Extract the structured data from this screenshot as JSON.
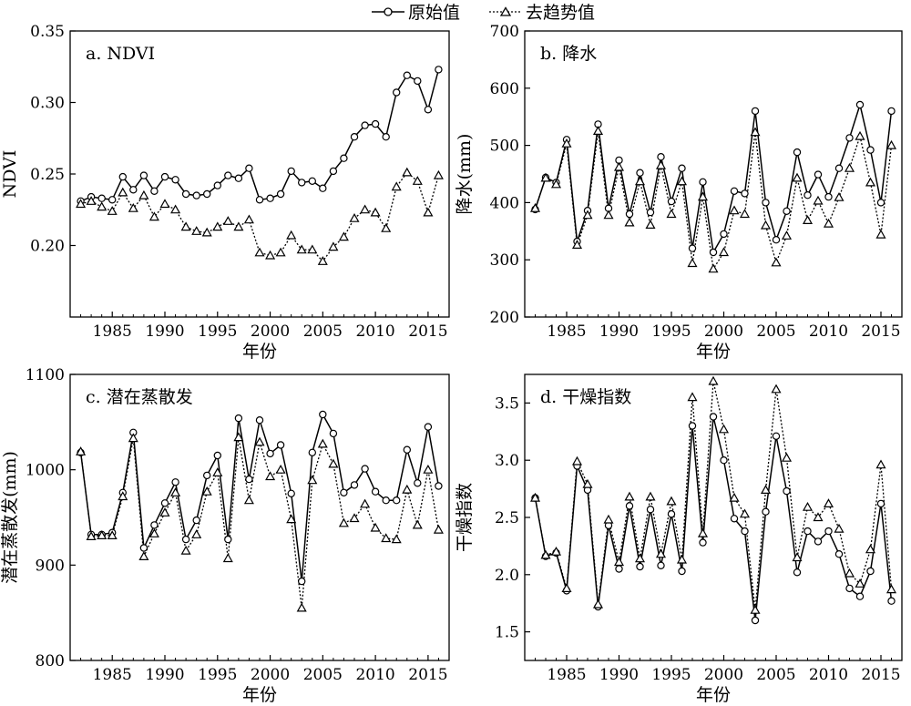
{
  "legend": {
    "items": [
      {
        "label": "原始值",
        "marker": "circle",
        "dash": "solid"
      },
      {
        "label": "去趋势值",
        "marker": "triangle",
        "dash": "dotted"
      }
    ]
  },
  "chart_data": [
    {
      "type": "line",
      "title": "a. NDVI",
      "xlabel": "年份",
      "ylabel": "NDVI",
      "xlim": [
        1981,
        2017
      ],
      "ylim": [
        0.15,
        0.35
      ],
      "xticks": [
        1985,
        1990,
        1995,
        2000,
        2005,
        2010,
        2015
      ],
      "yticks": [
        "0.20",
        "0.25",
        "0.30",
        "0.35"
      ],
      "x": [
        1982,
        1983,
        1984,
        1985,
        1986,
        1987,
        1988,
        1989,
        1990,
        1991,
        1992,
        1993,
        1994,
        1995,
        1996,
        1997,
        1998,
        1999,
        2000,
        2001,
        2002,
        2003,
        2004,
        2005,
        2006,
        2007,
        2008,
        2009,
        2010,
        2011,
        2012,
        2013,
        2014,
        2015,
        2016
      ],
      "series": [
        {
          "name": "原始值",
          "values": [
            0.231,
            0.234,
            0.233,
            0.232,
            0.248,
            0.239,
            0.249,
            0.238,
            0.248,
            0.246,
            0.236,
            0.235,
            0.236,
            0.242,
            0.249,
            0.247,
            0.254,
            0.232,
            0.233,
            0.236,
            0.252,
            0.244,
            0.245,
            0.24,
            0.252,
            0.261,
            0.276,
            0.284,
            0.285,
            0.276,
            0.307,
            0.319,
            0.315,
            0.295,
            0.323
          ]
        },
        {
          "name": "去趋势值",
          "values": [
            0.229,
            0.231,
            0.227,
            0.224,
            0.237,
            0.226,
            0.235,
            0.22,
            0.229,
            0.225,
            0.213,
            0.21,
            0.209,
            0.213,
            0.217,
            0.213,
            0.218,
            0.195,
            0.193,
            0.195,
            0.207,
            0.197,
            0.197,
            0.189,
            0.199,
            0.206,
            0.219,
            0.225,
            0.223,
            0.212,
            0.241,
            0.251,
            0.245,
            0.223,
            0.249
          ]
        }
      ]
    },
    {
      "type": "line",
      "title": "b. 降水",
      "xlabel": "年份",
      "ylabel": "降水(mm)",
      "xlim": [
        1981,
        2017
      ],
      "ylim": [
        200,
        700
      ],
      "xticks": [
        1985,
        1990,
        1995,
        2000,
        2005,
        2010,
        2015
      ],
      "yticks": [
        "200",
        "300",
        "400",
        "500",
        "600",
        "700"
      ],
      "x": [
        1982,
        1983,
        1984,
        1985,
        1986,
        1987,
        1988,
        1989,
        1990,
        1991,
        1992,
        1993,
        1994,
        1995,
        1996,
        1997,
        1998,
        1999,
        2000,
        2001,
        2002,
        2003,
        2004,
        2005,
        2006,
        2007,
        2008,
        2009,
        2010,
        2011,
        2012,
        2013,
        2014,
        2015,
        2016
      ],
      "series": [
        {
          "name": "原始值",
          "values": [
            388,
            444,
            435,
            510,
            332,
            386,
            537,
            390,
            474,
            380,
            452,
            383,
            480,
            402,
            460,
            320,
            436,
            313,
            345,
            420,
            416,
            560,
            400,
            335,
            385,
            488,
            413,
            449,
            410,
            460,
            513,
            571,
            492,
            400,
            560
          ]
        },
        {
          "name": "去趋势值",
          "values": [
            390,
            443,
            432,
            503,
            326,
            378,
            525,
            378,
            462,
            365,
            437,
            361,
            465,
            380,
            437,
            294,
            410,
            284,
            313,
            386,
            380,
            523,
            360,
            295,
            342,
            443,
            369,
            403,
            363,
            409,
            460,
            516,
            435,
            344,
            500
          ]
        }
      ]
    },
    {
      "type": "line",
      "title": "c. 潜在蒸散发",
      "xlabel": "年份",
      "ylabel": "潜在蒸散发(mm)",
      "xlim": [
        1981,
        2017
      ],
      "ylim": [
        800,
        1100
      ],
      "xticks": [
        1985,
        1990,
        1995,
        2000,
        2005,
        2010,
        2015
      ],
      "yticks": [
        "800",
        "900",
        "1000",
        "1100"
      ],
      "x": [
        1982,
        1983,
        1984,
        1985,
        1986,
        1987,
        1988,
        1989,
        1990,
        1991,
        1992,
        1993,
        1994,
        1995,
        1996,
        1997,
        1998,
        1999,
        2000,
        2001,
        2002,
        2003,
        2004,
        2005,
        2006,
        2007,
        2008,
        2009,
        2010,
        2011,
        2012,
        2013,
        2014,
        2015,
        2016
      ],
      "series": [
        {
          "name": "原始值",
          "values": [
            1018,
            932,
            932,
            934,
            976,
            1039,
            918,
            942,
            965,
            987,
            927,
            947,
            994,
            1015,
            927,
            1054,
            990,
            1052,
            1017,
            1026,
            975,
            883,
            1018,
            1058,
            1038,
            976,
            984,
            1001,
            977,
            968,
            968,
            1021,
            986,
            1045,
            983
          ]
        },
        {
          "name": "去趋势值",
          "values": [
            1019,
            930,
            931,
            931,
            972,
            1033,
            909,
            933,
            955,
            976,
            915,
            932,
            977,
            997,
            907,
            1034,
            968,
            1029,
            993,
            1000,
            948,
            855,
            989,
            1027,
            1006,
            944,
            949,
            964,
            939,
            928,
            927,
            979,
            942,
            1000,
            937
          ]
        }
      ]
    },
    {
      "type": "line",
      "title": "d. 干燥指数",
      "xlabel": "年份",
      "ylabel": "干燥指数",
      "xlim": [
        1981,
        2017
      ],
      "ylim": [
        1.25,
        3.75
      ],
      "xticks": [
        1985,
        1990,
        1995,
        2000,
        2005,
        2010,
        2015
      ],
      "yticks": [
        "1.5",
        "2.0",
        "2.5",
        "3.0",
        "3.5"
      ],
      "x": [
        1982,
        1983,
        1984,
        1985,
        1986,
        1987,
        1988,
        1989,
        1990,
        1991,
        1992,
        1993,
        1994,
        1995,
        1996,
        1997,
        1998,
        1999,
        2000,
        2001,
        2002,
        2003,
        2004,
        2005,
        2006,
        2007,
        2008,
        2009,
        2010,
        2011,
        2012,
        2013,
        2014,
        2015,
        2016
      ],
      "series": [
        {
          "name": "原始值",
          "values": [
            2.67,
            2.16,
            2.19,
            1.86,
            2.95,
            2.74,
            1.72,
            2.43,
            2.05,
            2.6,
            2.07,
            2.57,
            2.08,
            2.53,
            2.03,
            3.3,
            2.28,
            3.38,
            3.0,
            2.49,
            2.38,
            1.6,
            2.55,
            3.21,
            2.73,
            2.02,
            2.38,
            2.29,
            2.38,
            2.18,
            1.88,
            1.81,
            2.03,
            2.62,
            1.77
          ]
        },
        {
          "name": "去趋势值",
          "values": [
            2.67,
            2.17,
            2.2,
            1.88,
            2.99,
            2.79,
            1.74,
            2.48,
            2.11,
            2.68,
            2.14,
            2.68,
            2.18,
            2.64,
            2.13,
            3.55,
            2.36,
            3.69,
            3.27,
            2.67,
            2.53,
            1.69,
            2.74,
            3.62,
            3.02,
            2.15,
            2.59,
            2.5,
            2.62,
            2.4,
            2.01,
            1.92,
            2.22,
            2.96,
            1.87
          ]
        }
      ]
    }
  ]
}
